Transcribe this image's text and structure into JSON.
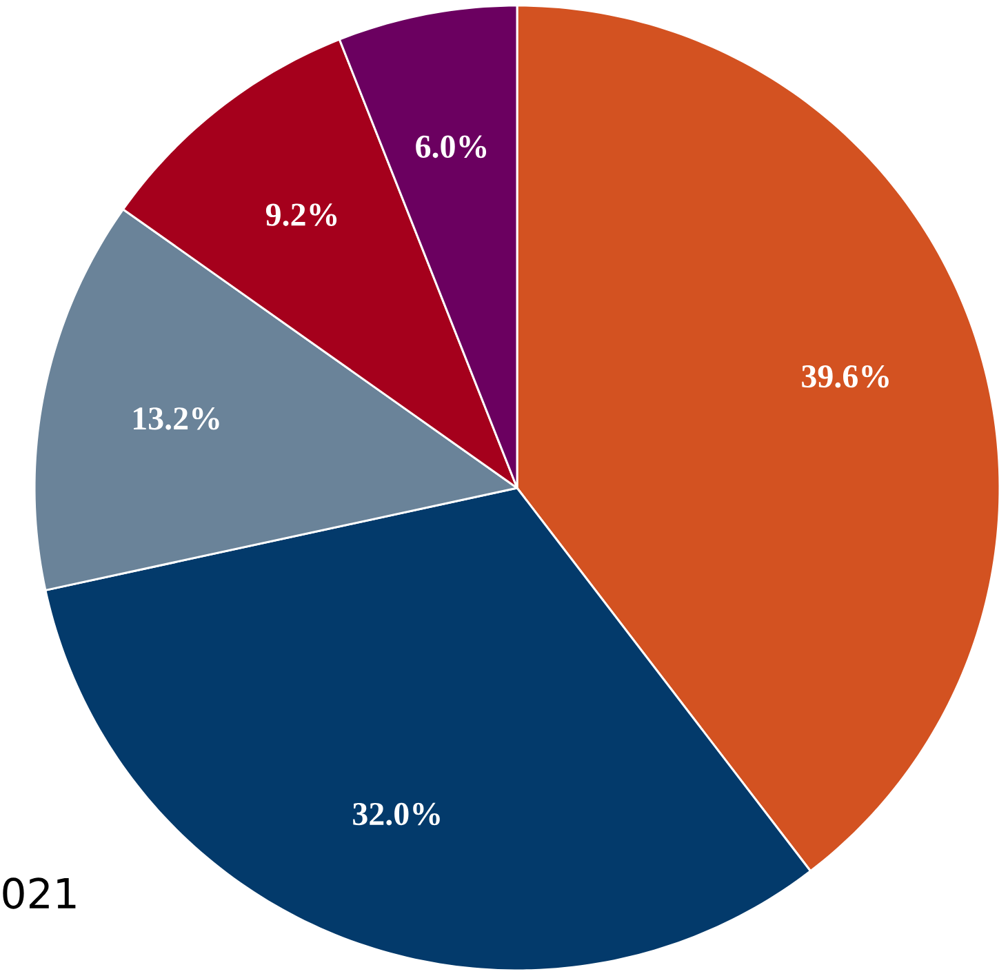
{
  "chart_data": {
    "type": "pie",
    "categories": [
      null,
      null,
      null,
      null,
      null
    ],
    "values": [
      39.6,
      32.0,
      13.2,
      9.2,
      6.0
    ],
    "value_labels": [
      "39.6%",
      "32.0%",
      "13.2%",
      "9.2%",
      "6.0%"
    ],
    "colors": [
      "#d35221",
      "#033a6b",
      "#6a8399",
      "#a5001c",
      "#6b0060"
    ],
    "annotations": [
      "021"
    ]
  }
}
